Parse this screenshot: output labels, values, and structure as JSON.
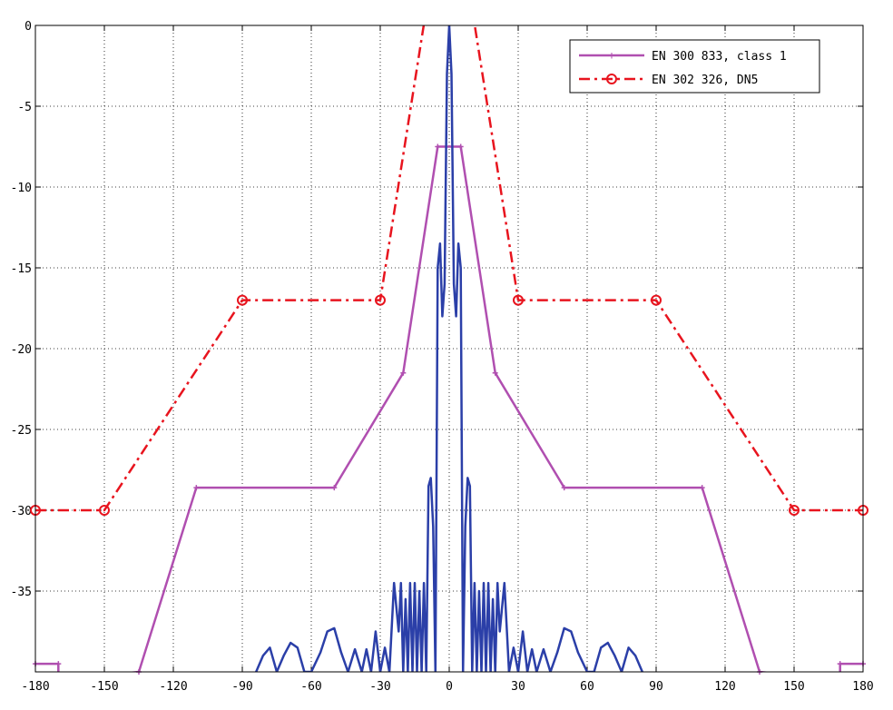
{
  "chart_data": {
    "type": "line",
    "title": "",
    "xlabel": "",
    "ylabel": "",
    "xlim": [
      -180,
      180
    ],
    "ylim": [
      -40,
      0
    ],
    "xticks": [
      -180,
      -150,
      -120,
      -90,
      -60,
      -30,
      0,
      30,
      60,
      90,
      120,
      150,
      180
    ],
    "xtick_labels": [
      "-180",
      "-150",
      "-120",
      "-90",
      "-60",
      "-30",
      "0",
      "30",
      "60",
      "90",
      "120",
      "150",
      "180"
    ],
    "yticks": [
      0,
      -5,
      -10,
      -15,
      -20,
      -25,
      -30,
      -35
    ],
    "ytick_labels": [
      "0",
      "-5",
      "-10",
      "-15",
      "-20",
      "-25",
      "-30",
      "-35"
    ],
    "grid": true,
    "legend_position": "top-right",
    "series": [
      {
        "name": "EN 300 833, class 1",
        "color": "#b04fb0",
        "style": "solid",
        "marker": "plus",
        "x": [
          -180,
          -170,
          -170,
          -135,
          -110,
          -50,
          -20,
          -5,
          5,
          20,
          50,
          110,
          135,
          170,
          170,
          180
        ],
        "y": [
          -39.5,
          -39.5,
          -40.5,
          -40,
          -28.6,
          -28.6,
          -21.5,
          -7.5,
          -7.5,
          -21.5,
          -28.6,
          -28.6,
          -40,
          -40.5,
          -39.5,
          -39.5
        ]
      },
      {
        "name": "EN 302 326, DN5",
        "color": "#e8141e",
        "style": "dashdot",
        "marker": "circle",
        "x": [
          -180,
          -150,
          -90,
          -30,
          -10,
          10,
          30,
          90,
          150,
          180
        ],
        "y": [
          -30,
          -30,
          -17,
          -17,
          1,
          1,
          -17,
          -17,
          -30,
          -30
        ],
        "marker_x": [
          -180,
          -150,
          -90,
          -30,
          30,
          90,
          150,
          180
        ],
        "marker_y": [
          -30,
          -30,
          -17,
          -17,
          -17,
          -17,
          -30,
          -30
        ]
      },
      {
        "color": "#2b3fa8",
        "style": "solid",
        "marker": "none",
        "x": [
          -84,
          -81,
          -78,
          -75,
          -72,
          -69,
          -66,
          -63,
          -60,
          -56,
          -53,
          -50,
          -47,
          -44,
          -41,
          -38,
          -36,
          -34,
          -32,
          -30,
          -28,
          -26,
          -24,
          -22,
          -21,
          -20,
          -19,
          -18,
          -17,
          -16,
          -15,
          -14,
          -13,
          -12,
          -11,
          -10,
          -9,
          -8,
          -7,
          -6,
          -5,
          -4,
          -3,
          -2,
          -1,
          0,
          1,
          2,
          3,
          4,
          5,
          6,
          7,
          8,
          9,
          10,
          11,
          12,
          13,
          14,
          15,
          16,
          17,
          18,
          19,
          20,
          21,
          22,
          24,
          26,
          28,
          30,
          32,
          34,
          36,
          38,
          41,
          44,
          47,
          50,
          53,
          56,
          60,
          63,
          66,
          69,
          72,
          75,
          78,
          81,
          84
        ],
        "y": [
          -40,
          -39,
          -38.5,
          -40,
          -39,
          -38.2,
          -38.5,
          -40,
          -40,
          -38.8,
          -37.5,
          -37.3,
          -38.8,
          -40,
          -38.6,
          -40,
          -38.6,
          -40,
          -37.5,
          -40,
          -38.5,
          -40,
          -34.5,
          -37.5,
          -34.5,
          -40,
          -35.5,
          -40,
          -34.5,
          -40,
          -34.5,
          -40,
          -35,
          -40,
          -34.5,
          -40,
          -28.5,
          -28,
          -31,
          -40,
          -15,
          -13.5,
          -18,
          -16,
          -3,
          0,
          -3,
          -16,
          -18,
          -13.5,
          -15,
          -40,
          -31,
          -28,
          -28.5,
          -40,
          -34.5,
          -40,
          -35,
          -40,
          -34.5,
          -40,
          -34.5,
          -40,
          -35.5,
          -40,
          -34.5,
          -37.5,
          -34.5,
          -40,
          -38.5,
          -40,
          -37.5,
          -40,
          -38.6,
          -40,
          -38.6,
          -40,
          -38.8,
          -37.3,
          -37.5,
          -38.8,
          -40,
          -40,
          -38.5,
          -38.2,
          -39,
          -40,
          -38.5,
          -39,
          -40
        ]
      }
    ]
  }
}
